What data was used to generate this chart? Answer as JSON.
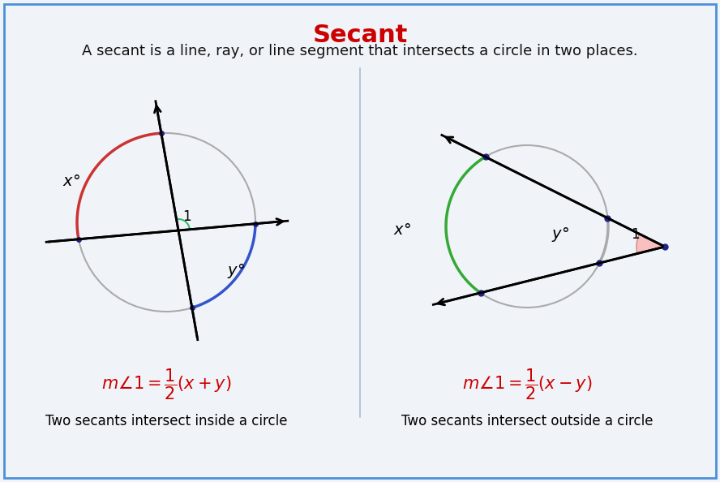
{
  "title": "Secant",
  "title_color": "#cc0000",
  "title_fontsize": 22,
  "subtitle": "A secant is a line, ray, or line segment that intersects a circle in two places.",
  "subtitle_fontsize": 13,
  "bg_color": "#f0f4f8",
  "border_color": "#4a90d9",
  "formula_left": "m\\angle 1=\\dfrac{1}{2}(x+y)",
  "formula_right": "m\\angle 1=\\dfrac{1}{2}(x-y)",
  "label_left": "Two secants intersect inside a circle",
  "label_right": "Two secants intersect outside a circle",
  "formula_color": "#cc0000",
  "label_fontsize": 12
}
